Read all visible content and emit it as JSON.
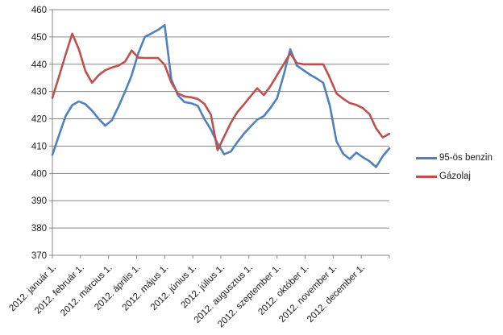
{
  "chart_data": {
    "type": "line",
    "title": "",
    "xlabel": "",
    "ylabel": "",
    "ylim": [
      370,
      460
    ],
    "y_ticks": [
      460,
      450,
      440,
      430,
      420,
      410,
      400,
      390,
      380,
      370
    ],
    "grid": "horizontal",
    "legend_position": "right",
    "axis_color": "#878787",
    "grid_color": "#878787",
    "text_color": "#1a1a1a",
    "x_labels": [
      "2012. január 1.",
      "2012. február 1.",
      "2012. március 1.",
      "2012. április 1.",
      "2012. május 1.",
      "2012. június 1.",
      "2012. július 1.",
      "2012. augusztus 1.",
      "2012. szeptember 1.",
      "2012. október 1.",
      "2012. november 1.",
      "2012. december 1."
    ],
    "x_unit": "weekly samples, January–December 2012",
    "series": [
      {
        "name": "95-ös benzin",
        "color": "#4F81BD",
        "values": [
          406.8,
          414,
          421,
          425,
          426.4,
          425.4,
          423,
          420,
          417.5,
          419.5,
          424.5,
          430,
          436,
          444,
          450,
          451.3,
          452.6,
          454.3,
          434.5,
          428.6,
          426.1,
          425.7,
          424.8,
          420,
          416,
          411,
          407,
          408,
          411.5,
          414.6,
          417.2,
          419.7,
          421,
          424,
          427.5,
          436,
          445.5,
          439.5,
          437.8,
          436.2,
          434.8,
          433.2,
          424.8,
          411.8,
          407.2,
          405.3,
          407.6,
          405.9,
          404.5,
          402.3,
          406.3,
          409.2
        ]
      },
      {
        "name": "Gázolaj",
        "color": "#C0504D",
        "values": [
          427.7,
          435.5,
          443.5,
          451.2,
          445.5,
          437.5,
          433.2,
          436,
          437.8,
          438.8,
          439.5,
          441,
          445,
          442.4,
          442.3,
          442.3,
          442.3,
          439.8,
          433.3,
          429.3,
          428.2,
          427.9,
          427.3,
          425.5,
          421.5,
          408.5,
          413.5,
          418.5,
          422.5,
          425.3,
          428.3,
          431.2,
          428.7,
          432,
          436,
          440,
          444,
          440.4,
          440,
          440,
          440,
          440,
          435,
          429.3,
          427.4,
          425.8,
          425.1,
          423.9,
          421.7,
          416.5,
          413.2,
          414.5
        ]
      }
    ]
  }
}
